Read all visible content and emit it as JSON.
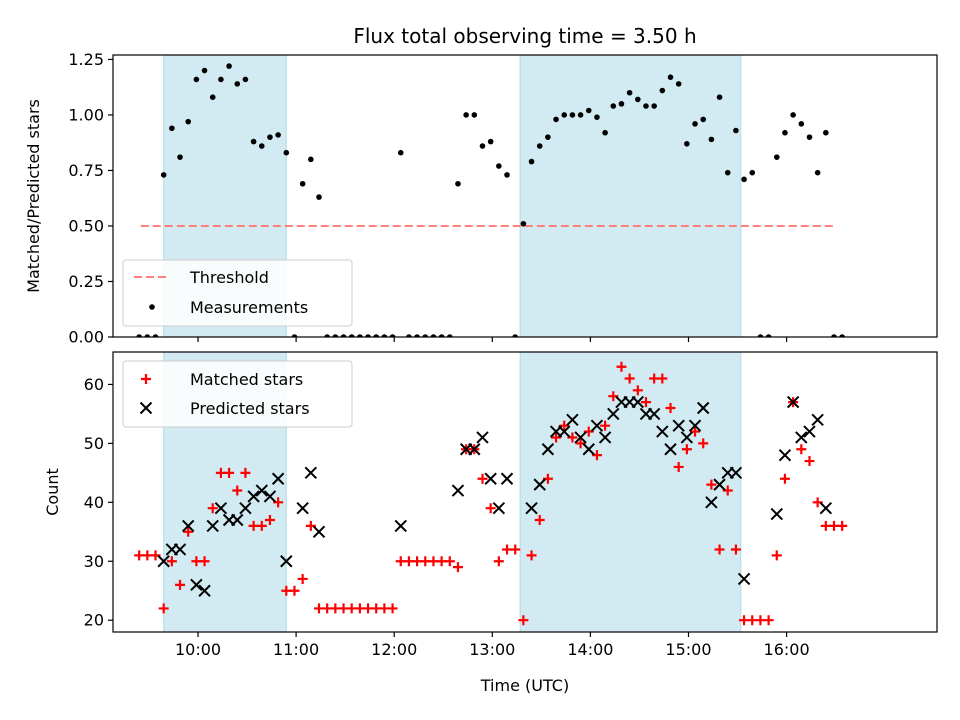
{
  "chart_data": [
    {
      "type": "scatter",
      "title": "Flux total observing time = 3.50 h",
      "xlabel": "",
      "ylabel": "Matched/Predicted stars",
      "ylim": [
        0,
        1.27
      ],
      "yticks": [
        "0.00",
        "0.25",
        "0.50",
        "0.75",
        "1.00",
        "1.25"
      ],
      "ytick_values": [
        0,
        0.25,
        0.5,
        0.75,
        1.0,
        1.25
      ],
      "xlim_minutes_utc": [
        548,
        1052
      ],
      "shaded_intervals": [
        [
          "09:39",
          "10:54"
        ],
        [
          "13:17",
          "15:32"
        ]
      ],
      "shade_color": "#add8e6",
      "threshold": {
        "name": "Threshold",
        "value": 0.5,
        "x_range": [
          "09:25",
          "16:30"
        ],
        "color": "#ff7f7f"
      },
      "series": [
        {
          "name": "Measurements",
          "color": "#000000",
          "points": [
            [
              "09:24",
              0.0
            ],
            [
              "09:29",
              0.0
            ],
            [
              "09:34",
              0.0
            ],
            [
              "09:39",
              0.73
            ],
            [
              "09:44",
              0.94
            ],
            [
              "09:49",
              0.81
            ],
            [
              "09:54",
              0.97
            ],
            [
              "09:59",
              1.16
            ],
            [
              "10:04",
              1.2
            ],
            [
              "10:09",
              1.08
            ],
            [
              "10:14",
              1.16
            ],
            [
              "10:19",
              1.22
            ],
            [
              "10:24",
              1.14
            ],
            [
              "10:29",
              1.16
            ],
            [
              "10:34",
              0.88
            ],
            [
              "10:39",
              0.86
            ],
            [
              "10:44",
              0.9
            ],
            [
              "10:49",
              0.91
            ],
            [
              "10:54",
              0.83
            ],
            [
              "10:59",
              0.0
            ],
            [
              "11:04",
              0.69
            ],
            [
              "11:09",
              0.8
            ],
            [
              "11:14",
              0.63
            ],
            [
              "11:19",
              0.0
            ],
            [
              "11:24",
              0.0
            ],
            [
              "11:29",
              0.0
            ],
            [
              "11:34",
              0.0
            ],
            [
              "11:39",
              0.0
            ],
            [
              "11:44",
              0.0
            ],
            [
              "11:49",
              0.0
            ],
            [
              "11:54",
              0.0
            ],
            [
              "11:59",
              0.0
            ],
            [
              "12:04",
              0.83
            ],
            [
              "12:09",
              0.0
            ],
            [
              "12:14",
              0.0
            ],
            [
              "12:19",
              0.0
            ],
            [
              "12:24",
              0.0
            ],
            [
              "12:29",
              0.0
            ],
            [
              "12:34",
              0.0
            ],
            [
              "12:39",
              0.69
            ],
            [
              "12:44",
              1.0
            ],
            [
              "12:49",
              1.0
            ],
            [
              "12:54",
              0.86
            ],
            [
              "12:59",
              0.88
            ],
            [
              "13:04",
              0.77
            ],
            [
              "13:09",
              0.73
            ],
            [
              "13:14",
              0.0
            ],
            [
              "13:19",
              0.51
            ],
            [
              "13:24",
              0.79
            ],
            [
              "13:29",
              0.86
            ],
            [
              "13:34",
              0.9
            ],
            [
              "13:39",
              0.98
            ],
            [
              "13:44",
              1.0
            ],
            [
              "13:49",
              1.0
            ],
            [
              "13:54",
              1.0
            ],
            [
              "13:59",
              1.02
            ],
            [
              "14:04",
              0.99
            ],
            [
              "14:09",
              0.92
            ],
            [
              "14:14",
              1.04
            ],
            [
              "14:19",
              1.05
            ],
            [
              "14:24",
              1.1
            ],
            [
              "14:29",
              1.07
            ],
            [
              "14:34",
              1.04
            ],
            [
              "14:39",
              1.04
            ],
            [
              "14:44",
              1.11
            ],
            [
              "14:49",
              1.17
            ],
            [
              "14:54",
              1.14
            ],
            [
              "14:59",
              0.87
            ],
            [
              "15:04",
              0.96
            ],
            [
              "15:09",
              0.98
            ],
            [
              "15:14",
              0.89
            ],
            [
              "15:19",
              1.08
            ],
            [
              "15:24",
              0.74
            ],
            [
              "15:29",
              0.93
            ],
            [
              "15:34",
              0.71
            ],
            [
              "15:39",
              0.74
            ],
            [
              "15:44",
              0.0
            ],
            [
              "15:49",
              0.0
            ],
            [
              "15:54",
              0.81
            ],
            [
              "15:59",
              0.92
            ],
            [
              "16:04",
              1.0
            ],
            [
              "16:09",
              0.96
            ],
            [
              "16:14",
              0.9
            ],
            [
              "16:19",
              0.74
            ],
            [
              "16:24",
              0.92
            ],
            [
              "16:29",
              0.0
            ],
            [
              "16:34",
              0.0
            ]
          ]
        }
      ],
      "legend": {
        "location": "lower-left",
        "entries": [
          "Threshold",
          "Measurements"
        ]
      }
    },
    {
      "type": "scatter",
      "xlabel": "Time (UTC)",
      "ylabel": "Count",
      "ylim": [
        18,
        65.5
      ],
      "yticks": [
        "20",
        "30",
        "40",
        "50",
        "60"
      ],
      "ytick_values": [
        20,
        30,
        40,
        50,
        60
      ],
      "xticks": [
        "10:00",
        "11:00",
        "12:00",
        "13:00",
        "14:00",
        "15:00",
        "16:00"
      ],
      "xtick_values": [
        "10:00",
        "11:00",
        "12:00",
        "13:00",
        "14:00",
        "15:00",
        "16:00"
      ],
      "xlim_minutes_utc": [
        548,
        1052
      ],
      "shaded_intervals": [
        [
          "09:39",
          "10:54"
        ],
        [
          "13:17",
          "15:32"
        ]
      ],
      "shade_color": "#add8e6",
      "series": [
        {
          "name": "Matched stars",
          "marker": "plus",
          "color": "#ff0000",
          "points": [
            [
              "09:24",
              31
            ],
            [
              "09:29",
              31
            ],
            [
              "09:34",
              31
            ],
            [
              "09:39",
              22
            ],
            [
              "09:44",
              30
            ],
            [
              "09:49",
              26
            ],
            [
              "09:54",
              35
            ],
            [
              "09:59",
              30
            ],
            [
              "10:04",
              30
            ],
            [
              "10:09",
              39
            ],
            [
              "10:14",
              45
            ],
            [
              "10:19",
              45
            ],
            [
              "10:24",
              42
            ],
            [
              "10:29",
              45
            ],
            [
              "10:34",
              36
            ],
            [
              "10:39",
              36
            ],
            [
              "10:44",
              37
            ],
            [
              "10:49",
              40
            ],
            [
              "10:54",
              25
            ],
            [
              "10:59",
              25
            ],
            [
              "11:04",
              27
            ],
            [
              "11:09",
              36
            ],
            [
              "11:14",
              22
            ],
            [
              "11:19",
              22
            ],
            [
              "11:24",
              22
            ],
            [
              "11:29",
              22
            ],
            [
              "11:34",
              22
            ],
            [
              "11:39",
              22
            ],
            [
              "11:44",
              22
            ],
            [
              "11:49",
              22
            ],
            [
              "11:54",
              22
            ],
            [
              "11:59",
              22
            ],
            [
              "12:04",
              30
            ],
            [
              "12:09",
              30
            ],
            [
              "12:14",
              30
            ],
            [
              "12:19",
              30
            ],
            [
              "12:24",
              30
            ],
            [
              "12:29",
              30
            ],
            [
              "12:34",
              30
            ],
            [
              "12:39",
              29
            ],
            [
              "12:44",
              49
            ],
            [
              "12:49",
              49
            ],
            [
              "12:54",
              44
            ],
            [
              "12:59",
              39
            ],
            [
              "13:04",
              30
            ],
            [
              "13:09",
              32
            ],
            [
              "13:14",
              32
            ],
            [
              "13:19",
              20
            ],
            [
              "13:24",
              31
            ],
            [
              "13:29",
              37
            ],
            [
              "13:34",
              44
            ],
            [
              "13:39",
              51
            ],
            [
              "13:44",
              53
            ],
            [
              "13:49",
              51
            ],
            [
              "13:54",
              50
            ],
            [
              "13:59",
              52
            ],
            [
              "14:04",
              48
            ],
            [
              "14:09",
              53
            ],
            [
              "14:14",
              58
            ],
            [
              "14:19",
              63
            ],
            [
              "14:24",
              61
            ],
            [
              "14:29",
              59
            ],
            [
              "14:34",
              57
            ],
            [
              "14:39",
              61
            ],
            [
              "14:44",
              61
            ],
            [
              "14:49",
              56
            ],
            [
              "14:54",
              46
            ],
            [
              "14:59",
              49
            ],
            [
              "15:04",
              52
            ],
            [
              "15:09",
              50
            ],
            [
              "15:14",
              43
            ],
            [
              "15:19",
              32
            ],
            [
              "15:24",
              42
            ],
            [
              "15:29",
              32
            ],
            [
              "15:34",
              20
            ],
            [
              "15:39",
              20
            ],
            [
              "15:44",
              20
            ],
            [
              "15:49",
              20
            ],
            [
              "15:54",
              31
            ],
            [
              "15:59",
              44
            ],
            [
              "16:04",
              57
            ],
            [
              "16:09",
              49
            ],
            [
              "16:14",
              47
            ],
            [
              "16:19",
              40
            ],
            [
              "16:24",
              36
            ],
            [
              "16:29",
              36
            ],
            [
              "16:34",
              36
            ]
          ]
        },
        {
          "name": "Predicted stars",
          "marker": "x",
          "color": "#000000",
          "points": [
            [
              "09:39",
              30
            ],
            [
              "09:44",
              32
            ],
            [
              "09:49",
              32
            ],
            [
              "09:54",
              36
            ],
            [
              "09:59",
              26
            ],
            [
              "10:04",
              25
            ],
            [
              "10:09",
              36
            ],
            [
              "10:14",
              39
            ],
            [
              "10:19",
              37
            ],
            [
              "10:24",
              37
            ],
            [
              "10:29",
              39
            ],
            [
              "10:34",
              41
            ],
            [
              "10:39",
              42
            ],
            [
              "10:44",
              41
            ],
            [
              "10:49",
              44
            ],
            [
              "10:54",
              30
            ],
            [
              "11:04",
              39
            ],
            [
              "11:09",
              45
            ],
            [
              "11:14",
              35
            ],
            [
              "12:04",
              36
            ],
            [
              "12:39",
              42
            ],
            [
              "12:44",
              49
            ],
            [
              "12:49",
              49
            ],
            [
              "12:54",
              51
            ],
            [
              "12:59",
              44
            ],
            [
              "13:04",
              39
            ],
            [
              "13:09",
              44
            ],
            [
              "13:24",
              39
            ],
            [
              "13:29",
              43
            ],
            [
              "13:34",
              49
            ],
            [
              "13:39",
              52
            ],
            [
              "13:44",
              52
            ],
            [
              "13:49",
              54
            ],
            [
              "13:54",
              51
            ],
            [
              "13:59",
              49
            ],
            [
              "14:04",
              53
            ],
            [
              "14:09",
              51
            ],
            [
              "14:14",
              55
            ],
            [
              "14:19",
              57
            ],
            [
              "14:24",
              57
            ],
            [
              "14:29",
              57
            ],
            [
              "14:34",
              55
            ],
            [
              "14:39",
              55
            ],
            [
              "14:44",
              52
            ],
            [
              "14:49",
              49
            ],
            [
              "14:54",
              53
            ],
            [
              "14:59",
              51
            ],
            [
              "15:04",
              53
            ],
            [
              "15:09",
              56
            ],
            [
              "15:14",
              40
            ],
            [
              "15:19",
              43
            ],
            [
              "15:24",
              45
            ],
            [
              "15:29",
              45
            ],
            [
              "15:34",
              27
            ],
            [
              "15:54",
              38
            ],
            [
              "15:59",
              48
            ],
            [
              "16:04",
              57
            ],
            [
              "16:09",
              51
            ],
            [
              "16:14",
              52
            ],
            [
              "16:19",
              54
            ],
            [
              "16:24",
              39
            ]
          ]
        }
      ],
      "legend": {
        "location": "upper-left",
        "entries": [
          "Matched stars",
          "Predicted stars"
        ]
      }
    }
  ]
}
